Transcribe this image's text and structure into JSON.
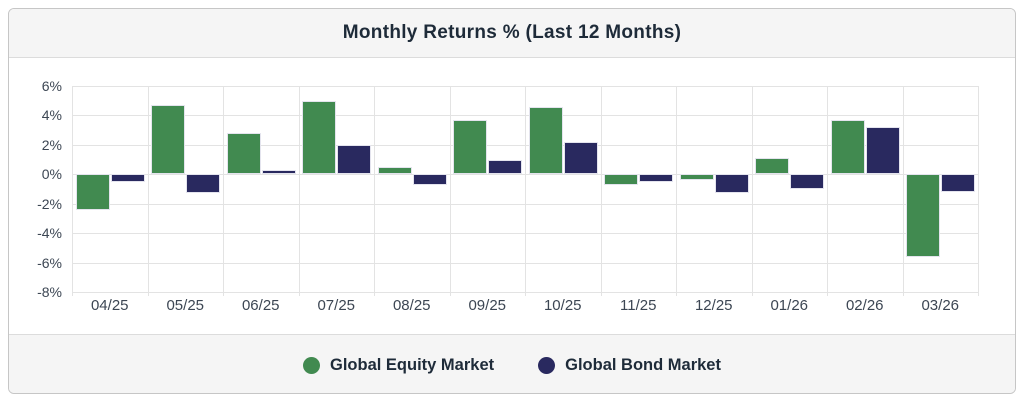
{
  "title": "Monthly Returns % (Last 12 Months)",
  "legend": [
    {
      "label": "Global Equity Market",
      "color": "#418a50"
    },
    {
      "label": "Global Bond Market",
      "color": "#29295f"
    }
  ],
  "colors": {
    "equity_green": "#418a50",
    "bond_navy": "#29295f",
    "text_dark": "#1e2b39",
    "axis_text": "#3c4653",
    "gridline": "#e3e3e3",
    "panel_gray": "#f5f5f5",
    "card_border": "#c6c6c6"
  },
  "chart_data": {
    "type": "bar",
    "title": "Monthly Returns % (Last 12 Months)",
    "categories": [
      "04/25",
      "05/25",
      "06/25",
      "07/25",
      "08/25",
      "09/25",
      "10/25",
      "11/25",
      "12/25",
      "01/26",
      "02/26",
      "03/26"
    ],
    "series": [
      {
        "name": "Global Equity Market",
        "color": "#418a50",
        "values": [
          -2.4,
          4.7,
          2.8,
          5.0,
          0.5,
          3.7,
          4.6,
          -0.7,
          -0.4,
          1.1,
          3.7,
          -5.6
        ]
      },
      {
        "name": "Global Bond Market",
        "color": "#29295f",
        "values": [
          -0.5,
          -1.3,
          0.3,
          2.0,
          -0.7,
          1.0,
          2.2,
          -0.5,
          -1.3,
          -1.0,
          3.2,
          -1.2
        ]
      }
    ],
    "xlabel": "",
    "ylabel": "",
    "y_ticks": [
      "6%",
      "4%",
      "2%",
      "0%",
      "-2%",
      "-4%",
      "-6%",
      "-8%"
    ],
    "ylim": [
      -8,
      6
    ],
    "grid": true,
    "legend_position": "bottom"
  }
}
